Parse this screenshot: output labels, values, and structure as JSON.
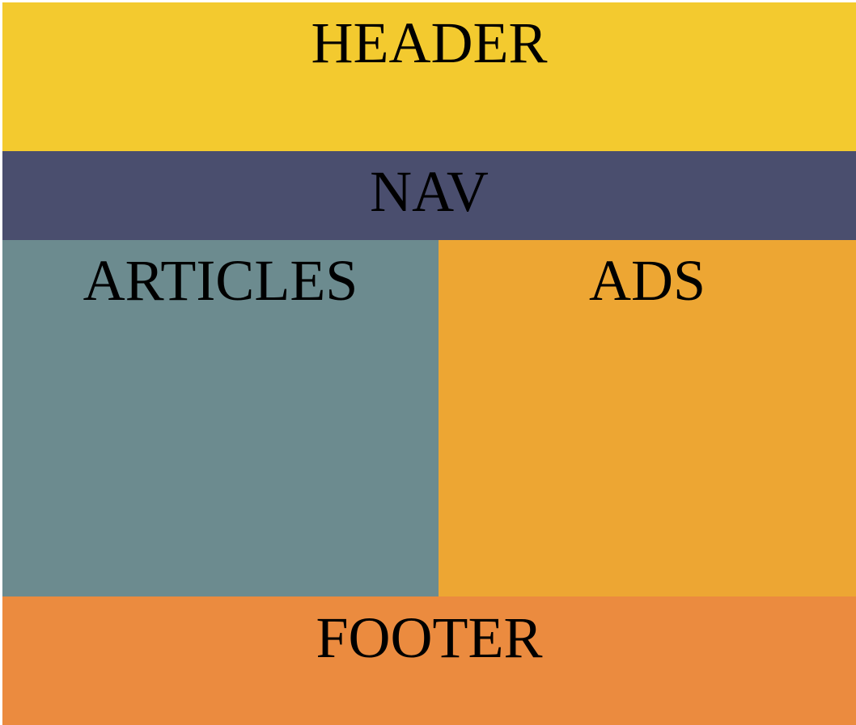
{
  "regions": {
    "header": {
      "label": "HEADER",
      "color": "#F3CA2F"
    },
    "nav": {
      "label": "NAV",
      "color": "#4A4E6E"
    },
    "articles": {
      "label": "ARTICLES",
      "color": "#6C8B8F"
    },
    "ads": {
      "label": "ADS",
      "color": "#EDA633"
    },
    "footer": {
      "label": "FOOTER",
      "color": "#EB8B3F"
    }
  }
}
